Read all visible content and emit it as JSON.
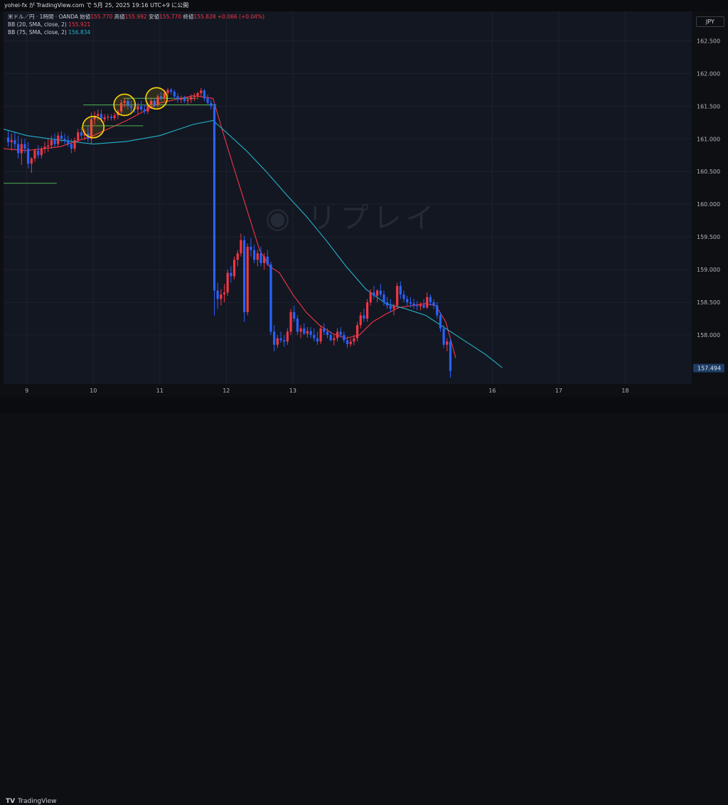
{
  "header": {
    "text": "yohei-fx が TradingView.com で 5月 25, 2025 19:16 UTC+9 に公開"
  },
  "legend": {
    "symbol": "米ドル／円 · 1時間 · OANDA",
    "open_label": "始値",
    "open_value": "155.770",
    "high_label": "高値",
    "high_value": "155.992",
    "low_label": "安値",
    "low_value": "155.770",
    "close_label": "終値",
    "close_value": "155.828",
    "change": "+0.066 (+0.04%)",
    "bb1_label": "BB (20, SMA, close, 2)",
    "bb1_value": "155.921",
    "bb2_label": "BB (75, SMA, close, 2)",
    "bb2_value": "156.834"
  },
  "currency": "JPY",
  "watermark": "リプレイ",
  "footer": {
    "logo_mark": "TV",
    "brand": "TradingView"
  },
  "colors": {
    "up": "#f23645",
    "down": "#2962ff",
    "ma20": "#f23645",
    "ma75": "#22b3c9",
    "level": "#4caf50",
    "highlight": "#ffd60a",
    "background": "#131722"
  },
  "chart_data": {
    "type": "candlestick",
    "timeframe": "1時間",
    "ylim": [
      157.25,
      162.95
    ],
    "yticks": [
      "162.500",
      "162.000",
      "161.500",
      "161.000",
      "160.500",
      "160.000",
      "159.500",
      "159.000",
      "158.500",
      "158.000"
    ],
    "xlim": [
      8.65,
      19.0
    ],
    "xticks": [
      {
        "t": 9,
        "label": "9"
      },
      {
        "t": 10,
        "label": "10"
      },
      {
        "t": 11,
        "label": "11"
      },
      {
        "t": 12,
        "label": "12"
      },
      {
        "t": 13,
        "label": "13"
      },
      {
        "t": 16,
        "label": "16"
      },
      {
        "t": 17,
        "label": "17"
      },
      {
        "t": 18,
        "label": "18"
      }
    ],
    "last_price": "157.494",
    "candles": [
      [
        8.72,
        161.02,
        161.12,
        160.88,
        160.95
      ],
      [
        8.77,
        160.95,
        161.08,
        160.82,
        160.98
      ],
      [
        8.82,
        160.98,
        161.1,
        160.85,
        160.92
      ],
      [
        8.87,
        160.92,
        161.05,
        160.7,
        160.78
      ],
      [
        8.92,
        160.78,
        161.0,
        160.6,
        160.92
      ],
      [
        8.97,
        160.92,
        161.0,
        160.78,
        160.85
      ],
      [
        9.02,
        160.85,
        160.95,
        160.55,
        160.62
      ],
      [
        9.07,
        160.62,
        160.72,
        160.48,
        160.7
      ],
      [
        9.12,
        160.7,
        160.85,
        160.65,
        160.82
      ],
      [
        9.17,
        160.82,
        160.9,
        160.7,
        160.75
      ],
      [
        9.22,
        160.75,
        160.88,
        160.7,
        160.85
      ],
      [
        9.27,
        160.85,
        160.95,
        160.78,
        160.88
      ],
      [
        9.32,
        160.88,
        161.0,
        160.8,
        160.9
      ],
      [
        9.37,
        160.9,
        161.05,
        160.85,
        160.98
      ],
      [
        9.42,
        160.98,
        161.08,
        160.88,
        160.92
      ],
      [
        9.47,
        160.92,
        161.1,
        160.88,
        161.05
      ],
      [
        9.52,
        161.05,
        161.12,
        160.95,
        161.0
      ],
      [
        9.57,
        161.0,
        161.08,
        160.92,
        160.98
      ],
      [
        9.62,
        160.98,
        161.05,
        160.88,
        160.92
      ],
      [
        9.67,
        160.92,
        161.0,
        160.78,
        160.85
      ],
      [
        9.72,
        160.85,
        161.02,
        160.8,
        160.98
      ],
      [
        9.77,
        160.98,
        161.15,
        160.95,
        161.1
      ],
      [
        9.82,
        161.1,
        161.18,
        161.0,
        161.05
      ],
      [
        9.87,
        161.05,
        161.15,
        160.98,
        161.08
      ],
      [
        9.92,
        161.08,
        161.2,
        160.95,
        161.0
      ],
      [
        9.97,
        161.0,
        161.4,
        160.92,
        161.3
      ],
      [
        10.02,
        161.3,
        161.42,
        161.22,
        161.35
      ],
      [
        10.07,
        161.35,
        161.45,
        161.28,
        161.38
      ],
      [
        10.12,
        161.38,
        161.45,
        161.25,
        161.3
      ],
      [
        10.17,
        161.3,
        161.38,
        161.25,
        161.33
      ],
      [
        10.22,
        161.33,
        161.38,
        161.28,
        161.34
      ],
      [
        10.27,
        161.34,
        161.38,
        161.28,
        161.32
      ],
      [
        10.32,
        161.32,
        161.4,
        161.28,
        161.36
      ],
      [
        10.37,
        161.36,
        161.45,
        161.3,
        161.42
      ],
      [
        10.42,
        161.42,
        161.6,
        161.38,
        161.55
      ],
      [
        10.47,
        161.55,
        161.62,
        161.48,
        161.58
      ],
      [
        10.52,
        161.58,
        161.62,
        161.45,
        161.5
      ],
      [
        10.57,
        161.5,
        161.58,
        161.42,
        161.48
      ],
      [
        10.62,
        161.48,
        161.55,
        161.4,
        161.45
      ],
      [
        10.67,
        161.45,
        161.55,
        161.38,
        161.5
      ],
      [
        10.72,
        161.5,
        161.58,
        161.42,
        161.45
      ],
      [
        10.77,
        161.45,
        161.52,
        161.38,
        161.42
      ],
      [
        10.82,
        161.42,
        161.55,
        161.38,
        161.52
      ],
      [
        10.87,
        161.52,
        161.62,
        161.46,
        161.58
      ],
      [
        10.92,
        161.58,
        161.62,
        161.48,
        161.52
      ],
      [
        10.97,
        161.52,
        161.68,
        161.48,
        161.65
      ],
      [
        11.02,
        161.65,
        161.72,
        161.58,
        161.62
      ],
      [
        11.07,
        161.62,
        161.75,
        161.58,
        161.7
      ],
      [
        11.12,
        161.7,
        161.78,
        161.65,
        161.75
      ],
      [
        11.17,
        161.75,
        161.78,
        161.68,
        161.72
      ],
      [
        11.22,
        161.72,
        161.75,
        161.62,
        161.65
      ],
      [
        11.27,
        161.65,
        161.7,
        161.55,
        161.6
      ],
      [
        11.32,
        161.6,
        161.66,
        161.55,
        161.62
      ],
      [
        11.37,
        161.62,
        161.66,
        161.55,
        161.58
      ],
      [
        11.42,
        161.58,
        161.64,
        161.52,
        161.6
      ],
      [
        11.47,
        161.6,
        161.68,
        161.55,
        161.64
      ],
      [
        11.52,
        161.64,
        161.7,
        161.58,
        161.66
      ],
      [
        11.57,
        161.66,
        161.72,
        161.6,
        161.7
      ],
      [
        11.62,
        161.7,
        161.78,
        161.64,
        161.74
      ],
      [
        11.67,
        161.74,
        161.76,
        161.58,
        161.62
      ],
      [
        11.72,
        161.62,
        161.68,
        161.52,
        161.55
      ],
      [
        11.77,
        161.55,
        161.6,
        161.45,
        161.5
      ],
      [
        11.82,
        161.5,
        161.55,
        158.3,
        158.68
      ],
      [
        11.87,
        158.68,
        158.8,
        158.4,
        158.55
      ],
      [
        11.92,
        158.55,
        158.7,
        158.45,
        158.62
      ],
      [
        11.97,
        158.62,
        158.78,
        158.5,
        158.65
      ],
      [
        12.02,
        158.65,
        159.0,
        158.6,
        158.95
      ],
      [
        12.07,
        158.95,
        159.05,
        158.8,
        158.9
      ],
      [
        12.12,
        158.9,
        159.2,
        158.85,
        159.15
      ],
      [
        12.17,
        159.15,
        159.3,
        159.05,
        159.25
      ],
      [
        12.22,
        159.25,
        159.55,
        159.2,
        159.45
      ],
      [
        12.27,
        159.45,
        159.52,
        158.2,
        158.35
      ],
      [
        12.32,
        158.35,
        159.4,
        158.3,
        159.35
      ],
      [
        12.37,
        159.35,
        159.48,
        159.2,
        159.3
      ],
      [
        12.42,
        159.3,
        159.38,
        159.1,
        159.15
      ],
      [
        12.47,
        159.15,
        159.3,
        159.05,
        159.25
      ],
      [
        12.52,
        159.25,
        159.35,
        159.05,
        159.1
      ],
      [
        12.57,
        159.1,
        159.25,
        159.0,
        159.2
      ],
      [
        12.62,
        159.2,
        159.3,
        159.05,
        159.08
      ],
      [
        12.67,
        159.08,
        159.12,
        158.0,
        158.05
      ],
      [
        12.72,
        158.05,
        158.15,
        157.75,
        157.85
      ],
      [
        12.77,
        157.85,
        158.0,
        157.8,
        157.95
      ],
      [
        12.82,
        157.95,
        158.05,
        157.88,
        157.92
      ],
      [
        12.87,
        157.92,
        158.0,
        157.82,
        157.9
      ],
      [
        12.92,
        157.9,
        158.1,
        157.85,
        158.05
      ],
      [
        12.97,
        158.05,
        158.4,
        158.0,
        158.35
      ],
      [
        13.02,
        158.35,
        158.45,
        158.2,
        158.25
      ],
      [
        13.07,
        158.25,
        158.3,
        158.0,
        158.05
      ],
      [
        13.12,
        158.05,
        158.15,
        157.95,
        158.1
      ],
      [
        13.17,
        158.1,
        158.18,
        158.0,
        158.02
      ],
      [
        13.22,
        158.02,
        158.12,
        157.96,
        158.06
      ],
      [
        13.27,
        158.06,
        158.12,
        157.95,
        158.0
      ],
      [
        13.32,
        158.0,
        158.1,
        157.9,
        157.95
      ],
      [
        13.37,
        157.95,
        158.05,
        157.85,
        157.9
      ],
      [
        13.42,
        157.9,
        158.15,
        157.86,
        158.1
      ],
      [
        13.47,
        158.1,
        158.18,
        158.0,
        158.05
      ],
      [
        13.52,
        158.05,
        158.1,
        157.95,
        158.0
      ],
      [
        13.57,
        158.0,
        158.06,
        157.9,
        157.92
      ],
      [
        13.62,
        157.92,
        158.0,
        157.84,
        157.95
      ],
      [
        13.67,
        157.95,
        158.1,
        157.9,
        158.05
      ],
      [
        13.72,
        158.05,
        158.12,
        157.96,
        158.0
      ],
      [
        13.77,
        158.0,
        158.05,
        157.88,
        157.92
      ],
      [
        13.82,
        157.92,
        157.98,
        157.8,
        157.86
      ],
      [
        13.87,
        157.86,
        157.95,
        157.82,
        157.9
      ],
      [
        13.92,
        157.9,
        158.0,
        157.84,
        157.95
      ],
      [
        13.97,
        157.95,
        158.2,
        157.9,
        158.15
      ],
      [
        14.02,
        158.15,
        158.35,
        158.1,
        158.3
      ],
      [
        14.07,
        158.3,
        158.4,
        158.2,
        158.25
      ],
      [
        14.12,
        158.25,
        158.55,
        158.2,
        158.5
      ],
      [
        14.17,
        158.5,
        158.7,
        158.45,
        158.65
      ],
      [
        14.22,
        158.65,
        158.75,
        158.55,
        158.6
      ],
      [
        14.27,
        158.6,
        158.7,
        158.5,
        158.68
      ],
      [
        14.32,
        158.68,
        158.78,
        158.58,
        158.62
      ],
      [
        14.37,
        158.62,
        158.68,
        158.45,
        158.5
      ],
      [
        14.42,
        158.5,
        158.58,
        158.4,
        158.45
      ],
      [
        14.47,
        158.45,
        158.55,
        158.35,
        158.4
      ],
      [
        14.52,
        158.4,
        158.48,
        158.3,
        158.45
      ],
      [
        14.57,
        158.45,
        158.8,
        158.4,
        158.75
      ],
      [
        14.62,
        158.75,
        158.82,
        158.55,
        158.62
      ],
      [
        14.67,
        158.62,
        158.68,
        158.5,
        158.55
      ],
      [
        14.72,
        158.55,
        158.6,
        158.45,
        158.5
      ],
      [
        14.77,
        158.5,
        158.58,
        158.42,
        158.48
      ],
      [
        14.82,
        158.48,
        158.55,
        158.4,
        158.45
      ],
      [
        14.87,
        158.45,
        158.52,
        158.38,
        158.44
      ],
      [
        14.92,
        158.44,
        158.5,
        158.38,
        158.46
      ],
      [
        14.97,
        158.46,
        158.55,
        158.4,
        158.42
      ],
      [
        15.02,
        158.42,
        158.65,
        158.4,
        158.58
      ],
      [
        15.07,
        158.58,
        158.62,
        158.45,
        158.5
      ],
      [
        15.12,
        158.5,
        158.55,
        158.4,
        158.45
      ],
      [
        15.17,
        158.45,
        158.5,
        158.25,
        158.3
      ],
      [
        15.22,
        158.3,
        158.35,
        158.05,
        158.1
      ],
      [
        15.27,
        158.1,
        158.15,
        157.8,
        157.85
      ],
      [
        15.32,
        157.85,
        157.95,
        157.75,
        157.9
      ],
      [
        15.37,
        157.9,
        157.95,
        157.35,
        157.45
      ]
    ],
    "series": [
      {
        "name": "BB (20, SMA, close, 2)",
        "color": "#f23645",
        "points": [
          [
            8.65,
            160.85
          ],
          [
            9.0,
            160.82
          ],
          [
            9.5,
            160.88
          ],
          [
            10.0,
            161.05
          ],
          [
            10.5,
            161.28
          ],
          [
            11.0,
            161.55
          ],
          [
            11.5,
            161.66
          ],
          [
            11.8,
            161.62
          ],
          [
            11.95,
            161.1
          ],
          [
            12.1,
            160.6
          ],
          [
            12.3,
            159.95
          ],
          [
            12.5,
            159.3
          ],
          [
            12.65,
            159.05
          ],
          [
            12.8,
            158.95
          ],
          [
            13.0,
            158.62
          ],
          [
            13.2,
            158.35
          ],
          [
            13.4,
            158.15
          ],
          [
            13.6,
            158.02
          ],
          [
            13.8,
            157.95
          ],
          [
            14.0,
            158.0
          ],
          [
            14.2,
            158.2
          ],
          [
            14.4,
            158.32
          ],
          [
            14.6,
            158.42
          ],
          [
            14.8,
            158.45
          ],
          [
            15.0,
            158.48
          ],
          [
            15.15,
            158.45
          ],
          [
            15.3,
            158.2
          ],
          [
            15.45,
            157.65
          ]
        ]
      },
      {
        "name": "BB (75, SMA, close, 2)",
        "color": "#22b3c9",
        "points": [
          [
            8.65,
            161.15
          ],
          [
            9.0,
            161.05
          ],
          [
            9.5,
            160.98
          ],
          [
            10.0,
            160.92
          ],
          [
            10.5,
            160.96
          ],
          [
            11.0,
            161.05
          ],
          [
            11.5,
            161.22
          ],
          [
            11.8,
            161.28
          ],
          [
            12.0,
            161.1
          ],
          [
            12.3,
            160.82
          ],
          [
            12.6,
            160.5
          ],
          [
            12.9,
            160.15
          ],
          [
            13.2,
            159.82
          ],
          [
            13.5,
            159.45
          ],
          [
            13.8,
            159.05
          ],
          [
            14.1,
            158.7
          ],
          [
            14.4,
            158.48
          ],
          [
            14.7,
            158.4
          ],
          [
            15.0,
            158.3
          ],
          [
            15.3,
            158.1
          ],
          [
            15.6,
            157.9
          ],
          [
            15.9,
            157.7
          ],
          [
            16.15,
            157.5
          ]
        ]
      }
    ],
    "levels": [
      {
        "price": 161.52,
        "t_start": 9.85,
        "t_end": 11.85
      },
      {
        "price": 161.2,
        "t_start": 9.85,
        "t_end": 10.75
      },
      {
        "price": 161.62,
        "t_start": 10.45,
        "t_end": 11.55
      },
      {
        "price": 160.32,
        "t_start": 8.65,
        "t_end": 9.45
      }
    ],
    "highlights": [
      {
        "t": 10.0,
        "price": 161.18
      },
      {
        "t": 10.47,
        "price": 161.52
      },
      {
        "t": 10.95,
        "price": 161.62
      }
    ]
  }
}
